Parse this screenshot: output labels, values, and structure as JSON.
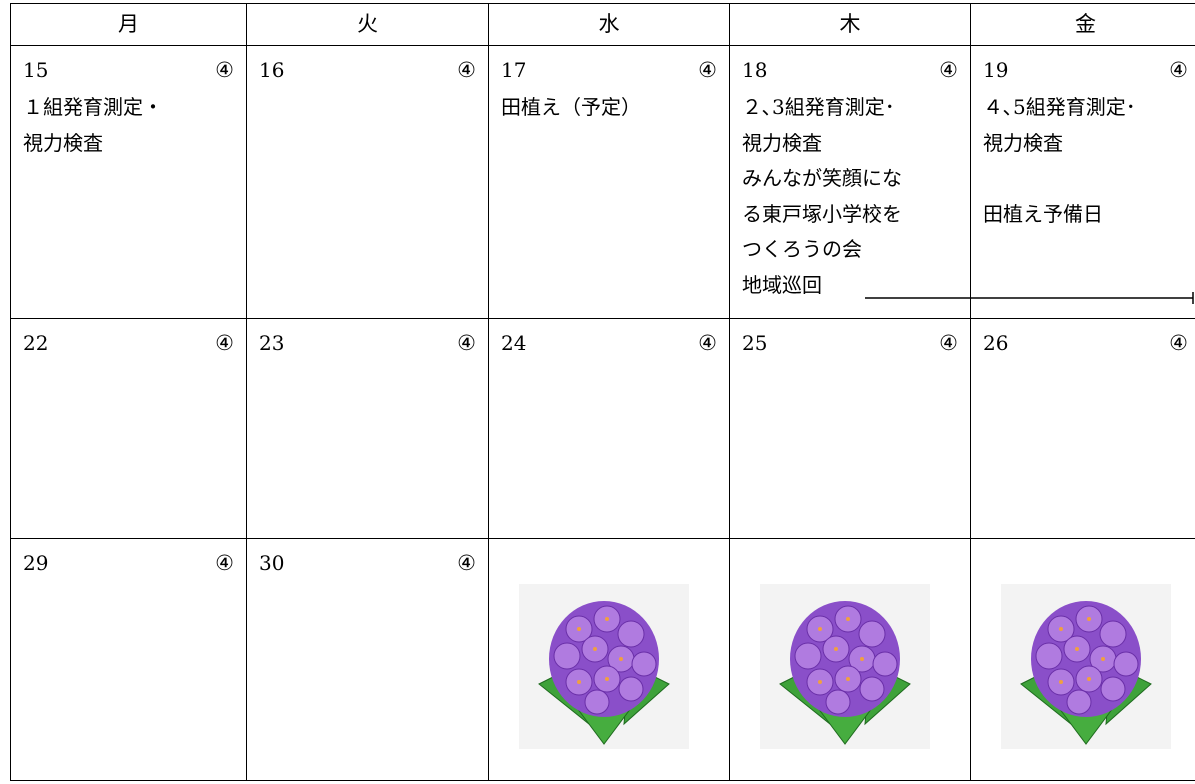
{
  "header": {
    "days": [
      "月",
      "火",
      "水",
      "木",
      "金"
    ]
  },
  "weeks": [
    [
      {
        "date": "15",
        "mark": "④",
        "lines": [
          "１組発育測定・",
          "視力検査"
        ]
      },
      {
        "date": "16",
        "mark": "④"
      },
      {
        "date": "17",
        "mark": "④",
        "lines": [
          "田植え（予定）"
        ]
      },
      {
        "date": "18",
        "mark": "④",
        "lines": [
          "２､3組発育測定･",
          "視力検査",
          "みんなが笑顔にな",
          "る東戸塚小学校を",
          "つくろうの会",
          "地域巡回"
        ]
      },
      {
        "date": "19",
        "mark": "④",
        "lines": [
          "４､5組発育測定･",
          "視力検査"
        ],
        "note": "田植え予備日"
      }
    ],
    [
      {
        "date": "22",
        "mark": "④"
      },
      {
        "date": "23",
        "mark": "④"
      },
      {
        "date": "24",
        "mark": "④"
      },
      {
        "date": "25",
        "mark": "④"
      },
      {
        "date": "26",
        "mark": "④"
      }
    ],
    [
      {
        "date": "29",
        "mark": "④"
      },
      {
        "date": "30",
        "mark": "④"
      }
    ]
  ]
}
